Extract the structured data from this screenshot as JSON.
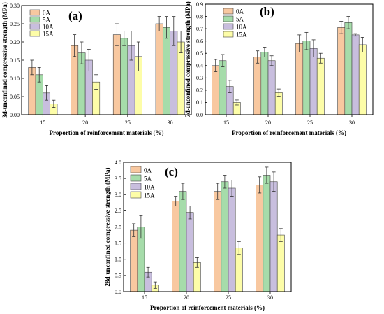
{
  "colors": {
    "0A": "#f8c8a0",
    "5A": "#a6dcaa",
    "10A": "#c8bede",
    "15A": "#fdfda8",
    "bar_stroke": "#444444",
    "error_bar": "#333333",
    "axis": "#000000"
  },
  "chart_data": [
    {
      "type": "bar",
      "panel_label": "(a)",
      "categories": [
        "15",
        "20",
        "25",
        "30"
      ],
      "series": [
        {
          "name": "0A",
          "values": [
            0.13,
            0.19,
            0.22,
            0.25
          ],
          "errors": [
            0.02,
            0.03,
            0.03,
            0.02
          ]
        },
        {
          "name": "5A",
          "values": [
            0.11,
            0.17,
            0.21,
            0.24
          ],
          "errors": [
            0.02,
            0.03,
            0.02,
            0.03
          ]
        },
        {
          "name": "10A",
          "values": [
            0.06,
            0.15,
            0.19,
            0.23
          ],
          "errors": [
            0.02,
            0.03,
            0.04,
            0.04
          ]
        },
        {
          "name": "15A",
          "values": [
            0.03,
            0.09,
            0.16,
            0.2
          ],
          "errors": [
            0.01,
            0.02,
            0.04,
            0.03
          ]
        }
      ],
      "title": "",
      "xlabel": "Proportion of reinforcement materials (%)",
      "ylabel": "3d-unconfined compressive strength (MPa)",
      "ylim": [
        0,
        0.3
      ],
      "yticks": [
        "0.00",
        "0.05",
        "0.10",
        "0.15",
        "0.20",
        "0.25",
        "0.30"
      ],
      "legend": "top-left",
      "grid": false
    },
    {
      "type": "bar",
      "panel_label": "(b)",
      "categories": [
        "15",
        "20",
        "25",
        "30"
      ],
      "series": [
        {
          "name": "0A",
          "values": [
            0.4,
            0.47,
            0.58,
            0.71
          ],
          "errors": [
            0.05,
            0.05,
            0.07,
            0.05
          ]
        },
        {
          "name": "5A",
          "values": [
            0.44,
            0.51,
            0.6,
            0.75
          ],
          "errors": [
            0.05,
            0.04,
            0.07,
            0.05
          ]
        },
        {
          "name": "10A",
          "values": [
            0.23,
            0.44,
            0.54,
            0.65
          ],
          "errors": [
            0.05,
            0.04,
            0.07,
            0.01
          ]
        },
        {
          "name": "15A",
          "values": [
            0.1,
            0.18,
            0.46,
            0.57
          ],
          "errors": [
            0.02,
            0.03,
            0.04,
            0.06
          ]
        }
      ],
      "title": "",
      "xlabel": "Proportion of reinforcement materials (%)",
      "ylabel": "7d-unconfined compressive strength (MPa)",
      "ylim": [
        0,
        0.9
      ],
      "yticks": [
        "0.0",
        "0.1",
        "0.2",
        "0.3",
        "0.4",
        "0.5",
        "0.6",
        "0.7",
        "0.8",
        "0.9"
      ],
      "legend": "top-left",
      "grid": false
    },
    {
      "type": "bar",
      "panel_label": "(c)",
      "categories": [
        "15",
        "20",
        "25",
        "30"
      ],
      "series": [
        {
          "name": "0A",
          "values": [
            1.9,
            2.8,
            3.1,
            3.3
          ],
          "errors": [
            0.2,
            0.15,
            0.25,
            0.25
          ]
        },
        {
          "name": "5A",
          "values": [
            2.0,
            3.1,
            3.4,
            3.6
          ],
          "errors": [
            0.35,
            0.25,
            0.2,
            0.25
          ]
        },
        {
          "name": "10A",
          "values": [
            0.6,
            2.45,
            3.2,
            3.4
          ],
          "errors": [
            0.15,
            0.2,
            0.25,
            0.3
          ]
        },
        {
          "name": "15A",
          "values": [
            0.2,
            0.9,
            1.35,
            1.75
          ],
          "errors": [
            0.1,
            0.15,
            0.2,
            0.2
          ]
        }
      ],
      "title": "",
      "xlabel": "Proportion of reinforcement materials (%)",
      "ylabel": "28d-unconfined compressive strength (MPa)",
      "ylim": [
        0,
        4.0
      ],
      "yticks": [
        "0.0",
        "0.5",
        "1.0",
        "1.5",
        "2.0",
        "2.5",
        "3.0",
        "3.5",
        "4.0"
      ],
      "legend": "top-left",
      "grid": false
    }
  ]
}
